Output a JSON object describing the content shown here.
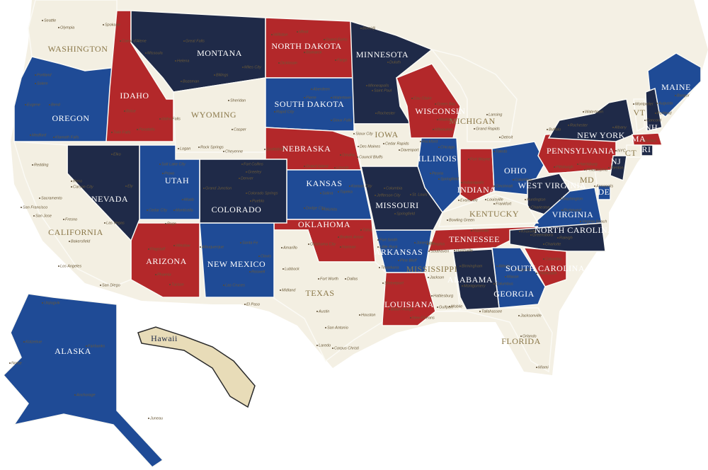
{
  "map": {
    "states": [
      "WASHINGTON",
      "OREGON",
      "IDAHO",
      "MONTANA",
      "WYOMING",
      "NORTH DAKOTA",
      "SOUTH DAKOTA",
      "NEBRASKA",
      "MINNESOTA",
      "IOWA",
      "WISCONSIN",
      "MICHIGAN",
      "ILLINOIS",
      "INDIANA",
      "OHIO",
      "PENNSYLVANIA",
      "NEW YORK",
      "MAINE",
      "VT",
      "NH",
      "MA",
      "CT",
      "RI",
      "NJ",
      "DE",
      "MD",
      "WEST VIRGINIA",
      "VIRGINIA",
      "KENTUCKY",
      "TENNESSEE",
      "NORTH CAROLINA",
      "SOUTH CAROLINA",
      "GEORGIA",
      "ALABAMA",
      "MISSISSIPPI",
      "LOUISIANA",
      "ARKANSAS",
      "MISSOURI",
      "KANSAS",
      "OKLAHOMA",
      "TEXAS",
      "NEW MEXICO",
      "COLORADO",
      "UTAH",
      "ARIZONA",
      "NEVADA",
      "CALIFORNIA",
      "ALASKA",
      "Hawaii",
      "FLORIDA"
    ],
    "cities": [
      "Seattle",
      "Olympia",
      "Spokane",
      "Portland",
      "Salem",
      "Eugene",
      "Bend",
      "Medford",
      "Klamath Falls",
      "Coeur d'Alene",
      "Boise",
      "Idaho Falls",
      "Pocatello",
      "Twin Falls",
      "Missoula",
      "Great Falls",
      "Helena",
      "Billings",
      "Bozeman",
      "Miles City",
      "Sheridan",
      "Casper",
      "Rock Springs",
      "Cheyenne",
      "Williston",
      "Minot",
      "Grand Forks",
      "Bismarck",
      "Dickinson",
      "Fargo",
      "Aberdeen",
      "Pierre",
      "Watertown",
      "Rapid City",
      "Sioux Falls",
      "Scottsbluff",
      "Omaha",
      "Grand Island",
      "Lincoln",
      "Bemidji",
      "Duluth",
      "Minneapolis",
      "Saint Paul",
      "Rochester",
      "Eau Claire",
      "Green Bay",
      "Madison",
      "Milwaukee",
      "Lansing",
      "Grand Rapids",
      "Detroit",
      "Sioux City",
      "Des Moines",
      "Cedar Rapids",
      "Davenport",
      "Council Bluffs",
      "Rockford",
      "Chicago",
      "Peoria",
      "Springfield",
      "Fort Wayne",
      "Indianapolis",
      "Evansville",
      "Toledo",
      "Columbus",
      "Cincinnati",
      "Buffalo",
      "Rochester",
      "Watertown",
      "Albany",
      "NYC",
      "Pittsburgh",
      "Harrisburg",
      "Philadelphia",
      "Trenton",
      "Montpelier",
      "Concord",
      "Augusta",
      "Bangor",
      "Portland",
      "Boston",
      "Annapolis",
      "Washington",
      "Richmond",
      "Virginia Beach",
      "Charleston",
      "Huntington",
      "Louisville",
      "Frankfort",
      "Bowling Green",
      "Knoxville",
      "Nashville",
      "Memphis",
      "Raleigh",
      "Charlotte",
      "Greensboro",
      "Columbia",
      "Charleston",
      "Atlanta",
      "Augusta",
      "Macon",
      "Columbus",
      "Birmingham",
      "Montgomery",
      "Mobile",
      "Huntsville",
      "Jackson",
      "Hattiesburg",
      "Gulfport",
      "Southaven",
      "Tallahassee",
      "Jacksonville",
      "Orlando",
      "Miami",
      "Little Rock",
      "Pine Bluff",
      "Fort Smith",
      "Jonesboro",
      "Texarkana",
      "Shreveport",
      "Baton Rouge",
      "New Orleans",
      "Kansas City",
      "Topeka",
      "Salina",
      "Dodge City",
      "Wichita",
      "Columbia",
      "Jefferson City",
      "St. Louis",
      "Springfield",
      "Tulsa",
      "Oklahoma City",
      "Broken Arrow",
      "Norman",
      "Amarillo",
      "Lubbock",
      "Midland",
      "El Paso",
      "Fort Worth",
      "Dallas",
      "Austin",
      "Houston",
      "San Antonio",
      "Laredo",
      "Corpus Christi",
      "Albuquerque",
      "Santa Fe",
      "Roswell",
      "Clovis",
      "Las Cruces",
      "Flagstaff",
      "Winslow",
      "Phoenix",
      "Tucson",
      "Page",
      "Salt Lake City",
      "Logan",
      "Provo",
      "Moab",
      "Cedar City",
      "Monticello",
      "Fort Collins",
      "Greeley",
      "Denver",
      "Grand Junction",
      "Colorado Springs",
      "Pueblo",
      "Elko",
      "Reno",
      "Carson City",
      "Ely",
      "Las Vegas",
      "Redding",
      "Sacramento",
      "San Francisco",
      "San Jose",
      "Fresno",
      "Bakersfield",
      "Los Angeles",
      "San Diego",
      "Utqiagvik",
      "Kotzebue",
      "Nome",
      "Fairbanks",
      "Anchorage",
      "Juneau"
    ]
  }
}
